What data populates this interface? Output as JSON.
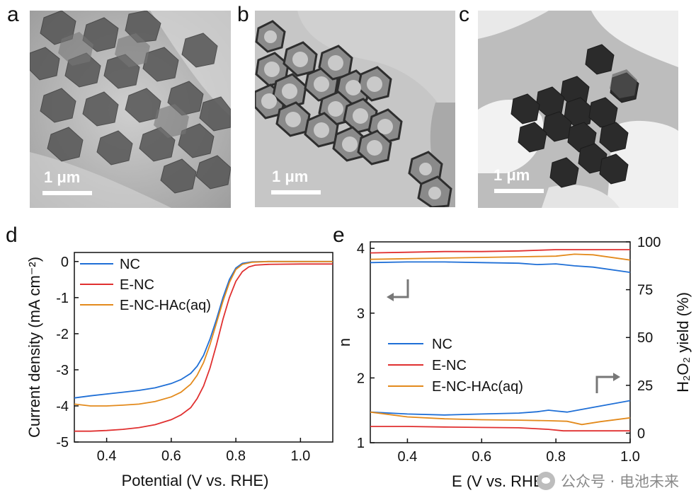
{
  "panels": {
    "a": {
      "letter": "a",
      "scale_label": "1 μm"
    },
    "b": {
      "letter": "b",
      "scale_label": "1 μm"
    },
    "c": {
      "letter": "c",
      "scale_label": "1 μm"
    },
    "d": {
      "letter": "d"
    },
    "e": {
      "letter": "e"
    }
  },
  "chart_data": [
    {
      "id": "d",
      "type": "line",
      "xlabel": "Potential (V vs. RHE)",
      "ylabel": "Current density (mA cm⁻²)",
      "xlim": [
        0.3,
        1.1
      ],
      "ylim": [
        -5,
        0.25
      ],
      "xticks": [
        "0.4",
        "0.6",
        "0.8",
        "1.0"
      ],
      "yticks": [
        "0",
        "-1",
        "-2",
        "-3",
        "-4",
        "-5"
      ],
      "legend_position": "top-left",
      "series": [
        {
          "name": "NC",
          "color": "#1f6fd6",
          "x": [
            0.3,
            0.35,
            0.4,
            0.45,
            0.5,
            0.55,
            0.6,
            0.63,
            0.66,
            0.68,
            0.7,
            0.72,
            0.74,
            0.76,
            0.78,
            0.8,
            0.82,
            0.85,
            0.9,
            1.0,
            1.1
          ],
          "y": [
            -3.78,
            -3.72,
            -3.67,
            -3.62,
            -3.57,
            -3.5,
            -3.38,
            -3.27,
            -3.1,
            -2.9,
            -2.6,
            -2.15,
            -1.6,
            -1.0,
            -0.5,
            -0.18,
            -0.05,
            -0.01,
            0.0,
            0.0,
            0.0
          ]
        },
        {
          "name": "E-NC",
          "color": "#e03030",
          "x": [
            0.3,
            0.35,
            0.4,
            0.45,
            0.5,
            0.55,
            0.6,
            0.63,
            0.66,
            0.68,
            0.7,
            0.72,
            0.74,
            0.76,
            0.78,
            0.8,
            0.82,
            0.84,
            0.86,
            0.9,
            1.0,
            1.1
          ],
          "y": [
            -4.7,
            -4.7,
            -4.68,
            -4.65,
            -4.6,
            -4.52,
            -4.38,
            -4.25,
            -4.05,
            -3.8,
            -3.45,
            -2.95,
            -2.3,
            -1.6,
            -1.0,
            -0.55,
            -0.28,
            -0.15,
            -0.1,
            -0.08,
            -0.07,
            -0.07
          ]
        },
        {
          "name": "E-NC-HAc(aq)",
          "color": "#e38a1c",
          "x": [
            0.3,
            0.35,
            0.4,
            0.45,
            0.5,
            0.55,
            0.6,
            0.63,
            0.66,
            0.68,
            0.7,
            0.72,
            0.74,
            0.76,
            0.78,
            0.8,
            0.82,
            0.85,
            0.9,
            1.0,
            1.1
          ],
          "y": [
            -3.95,
            -4.0,
            -4.0,
            -3.98,
            -3.95,
            -3.88,
            -3.75,
            -3.62,
            -3.4,
            -3.15,
            -2.8,
            -2.3,
            -1.7,
            -1.1,
            -0.58,
            -0.22,
            -0.08,
            -0.02,
            0.0,
            0.0,
            0.0
          ]
        }
      ]
    },
    {
      "id": "e",
      "type": "line",
      "xlabel": "E (V vs. RHE)",
      "ylabel": "n",
      "y2label": "H₂O₂ yield (%)",
      "xlim": [
        0.3,
        1.0
      ],
      "ylim": [
        1,
        4.1
      ],
      "y2lim": [
        -5,
        100
      ],
      "xticks": [
        "0.4",
        "0.6",
        "0.8",
        "1.0"
      ],
      "yticks": [
        "1",
        "2",
        "3",
        "4"
      ],
      "y2ticks": [
        "0",
        "25",
        "50",
        "75",
        "100"
      ],
      "legend_position": "middle-left",
      "series": [
        {
          "name": "NC",
          "color": "#1f6fd6",
          "axis": "n",
          "x": [
            0.3,
            0.4,
            0.5,
            0.6,
            0.7,
            0.75,
            0.8,
            0.85,
            0.9,
            1.0
          ],
          "y": [
            3.78,
            3.79,
            3.79,
            3.78,
            3.77,
            3.75,
            3.76,
            3.73,
            3.71,
            3.63
          ]
        },
        {
          "name": "NC",
          "color": "#1f6fd6",
          "axis": "yield",
          "x": [
            0.3,
            0.4,
            0.5,
            0.6,
            0.7,
            0.75,
            0.78,
            0.8,
            0.83,
            0.9,
            1.0
          ],
          "y": [
            11,
            10,
            9.5,
            10,
            10.5,
            11.2,
            12,
            11.6,
            11,
            13.5,
            17
          ]
        },
        {
          "name": "E-NC",
          "color": "#e03030",
          "axis": "n",
          "x": [
            0.3,
            0.4,
            0.5,
            0.6,
            0.7,
            0.8,
            0.9,
            1.0
          ],
          "y": [
            3.93,
            3.94,
            3.95,
            3.95,
            3.96,
            3.98,
            3.98,
            3.98
          ]
        },
        {
          "name": "E-NC",
          "color": "#e03030",
          "axis": "yield",
          "x": [
            0.3,
            0.4,
            0.5,
            0.6,
            0.7,
            0.78,
            0.82,
            0.9,
            1.0
          ],
          "y": [
            3.5,
            3.5,
            3.2,
            3.0,
            2.8,
            2.0,
            1.2,
            1.2,
            1.2
          ]
        },
        {
          "name": "E-NC-HAc(aq)",
          "color": "#e38a1c",
          "axis": "n",
          "x": [
            0.3,
            0.4,
            0.5,
            0.6,
            0.7,
            0.8,
            0.85,
            0.9,
            1.0
          ],
          "y": [
            3.83,
            3.84,
            3.85,
            3.86,
            3.87,
            3.88,
            3.91,
            3.9,
            3.82
          ]
        },
        {
          "name": "E-NC-HAc(aq)",
          "color": "#e38a1c",
          "axis": "yield",
          "x": [
            0.3,
            0.4,
            0.5,
            0.6,
            0.7,
            0.78,
            0.83,
            0.87,
            0.92,
            1.0
          ],
          "y": [
            11,
            8.5,
            7.5,
            7,
            6.8,
            6.5,
            6.2,
            4.5,
            6,
            8
          ]
        }
      ]
    }
  ],
  "watermark": "公众号 · 电池未来"
}
